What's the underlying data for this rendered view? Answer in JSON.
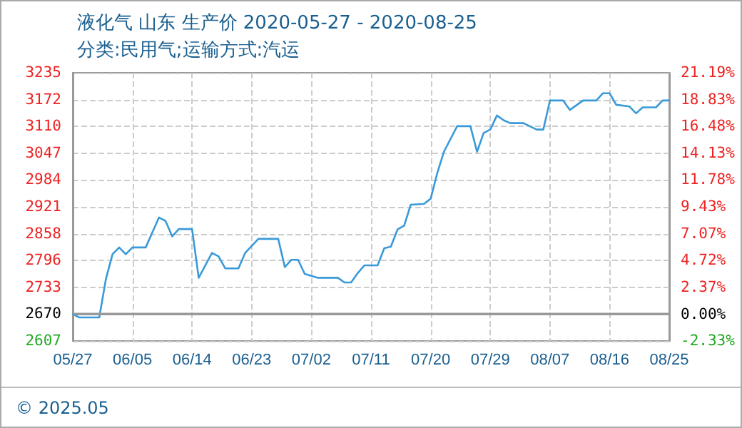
{
  "chart_data": {
    "type": "line",
    "title": "液化气 山东 生产价 2020-05-27 - 2020-08-25",
    "subtitle": "分类:民用气;运输方式:汽运",
    "annotations": [
      "© 2025.05"
    ],
    "x": [
      "--05-27",
      "--05-28",
      "--05-31",
      "--06-01",
      "--06-02",
      "--06-03",
      "--06-04",
      "--06-05",
      "--06-07",
      "--06-09",
      "--06-10",
      "--06-11",
      "--06-12",
      "--06-14",
      "--06-15",
      "--06-17",
      "--06-18",
      "--06-19",
      "--06-21",
      "--06-22",
      "--06-24",
      "--06-27",
      "--06-28",
      "--06-29",
      "--06-30",
      "--07-01",
      "--07-03",
      "--07-06",
      "--07-07",
      "--07-08",
      "--07-09",
      "--07-10",
      "--07-12",
      "--07-13",
      "--07-14",
      "--07-15",
      "--07-16",
      "--07-17",
      "--07-19",
      "--07-20",
      "--07-21",
      "--07-22",
      "--07-24",
      "--07-26",
      "--07-27",
      "--07-28",
      "--07-29",
      "--07-30",
      "--07-31",
      "--08-01",
      "--08-03",
      "--08-05",
      "--08-06",
      "--08-07",
      "--08-09",
      "--08-10",
      "--08-12",
      "--08-14",
      "--08-15",
      "--08-16",
      "--08-17",
      "--08-19",
      "--08-20",
      "--08-21",
      "--08-23",
      "--08-24",
      "--08-25"
    ],
    "series": [
      {
        "color": "#3a9ad9",
        "values": [
          2670,
          2662,
          2662,
          2752,
          2810,
          2826,
          2810,
          2826,
          2826,
          2896,
          2888,
          2852,
          2869,
          2869,
          2755,
          2813,
          2805,
          2777,
          2777,
          2813,
          2846,
          2846,
          2780,
          2797,
          2797,
          2764,
          2755,
          2755,
          2744,
          2744,
          2766,
          2784,
          2784,
          2824,
          2828,
          2868,
          2877,
          2926,
          2928,
          2940,
          3000,
          3050,
          3110,
          3110,
          3050,
          3094,
          3102,
          3135,
          3124,
          3117,
          3117,
          3102,
          3102,
          3170,
          3170,
          3148,
          3170,
          3170,
          3187,
          3187,
          3160,
          3156,
          3140,
          3154,
          3154,
          3170,
          3170
        ]
      }
    ],
    "xlim": [
      "--05-27",
      "--08-25"
    ],
    "xticks": [
      {
        "value": "--05-27",
        "label": "05/27"
      },
      {
        "value": "--06-05",
        "label": "06/05"
      },
      {
        "value": "--06-14",
        "label": "06/14"
      },
      {
        "value": "--06-23",
        "label": "06/23"
      },
      {
        "value": "--07-02",
        "label": "07/02"
      },
      {
        "value": "--07-11",
        "label": "07/11"
      },
      {
        "value": "--07-20",
        "label": "07/20"
      },
      {
        "value": "--07-29",
        "label": "07/29"
      },
      {
        "value": "--08-07",
        "label": "08/07"
      },
      {
        "value": "--08-16",
        "label": "08/16"
      },
      {
        "value": "--08-25",
        "label": "08/25"
      }
    ],
    "ylim": [
      2607,
      3235
    ],
    "yticks": [
      2607,
      2670,
      2733,
      2796,
      2858,
      2921,
      2984,
      3047,
      3110,
      3172,
      3235
    ],
    "y2lim": [
      -2.33,
      21.19
    ],
    "y2ticks": [
      {
        "value": -2.33,
        "label": "-2.33%"
      },
      {
        "value": 0,
        "label": "0.00%"
      },
      {
        "value": 2.37,
        "label": "2.37%"
      },
      {
        "value": 4.72,
        "label": "4.72%"
      },
      {
        "value": 7.07,
        "label": "7.07%"
      },
      {
        "value": 9.43,
        "label": "9.43%"
      },
      {
        "value": 11.78,
        "label": "11.78%"
      },
      {
        "value": 14.13,
        "label": "14.13%"
      },
      {
        "value": 16.48,
        "label": "16.48%"
      },
      {
        "value": 18.83,
        "label": "18.83%"
      },
      {
        "value": 21.19,
        "label": "21.19%"
      }
    ],
    "ref_lines": [
      {
        "axis": "y",
        "value": 2670,
        "color": "#999999"
      }
    ],
    "grid": true,
    "marker": "none",
    "line_style": "solid"
  }
}
